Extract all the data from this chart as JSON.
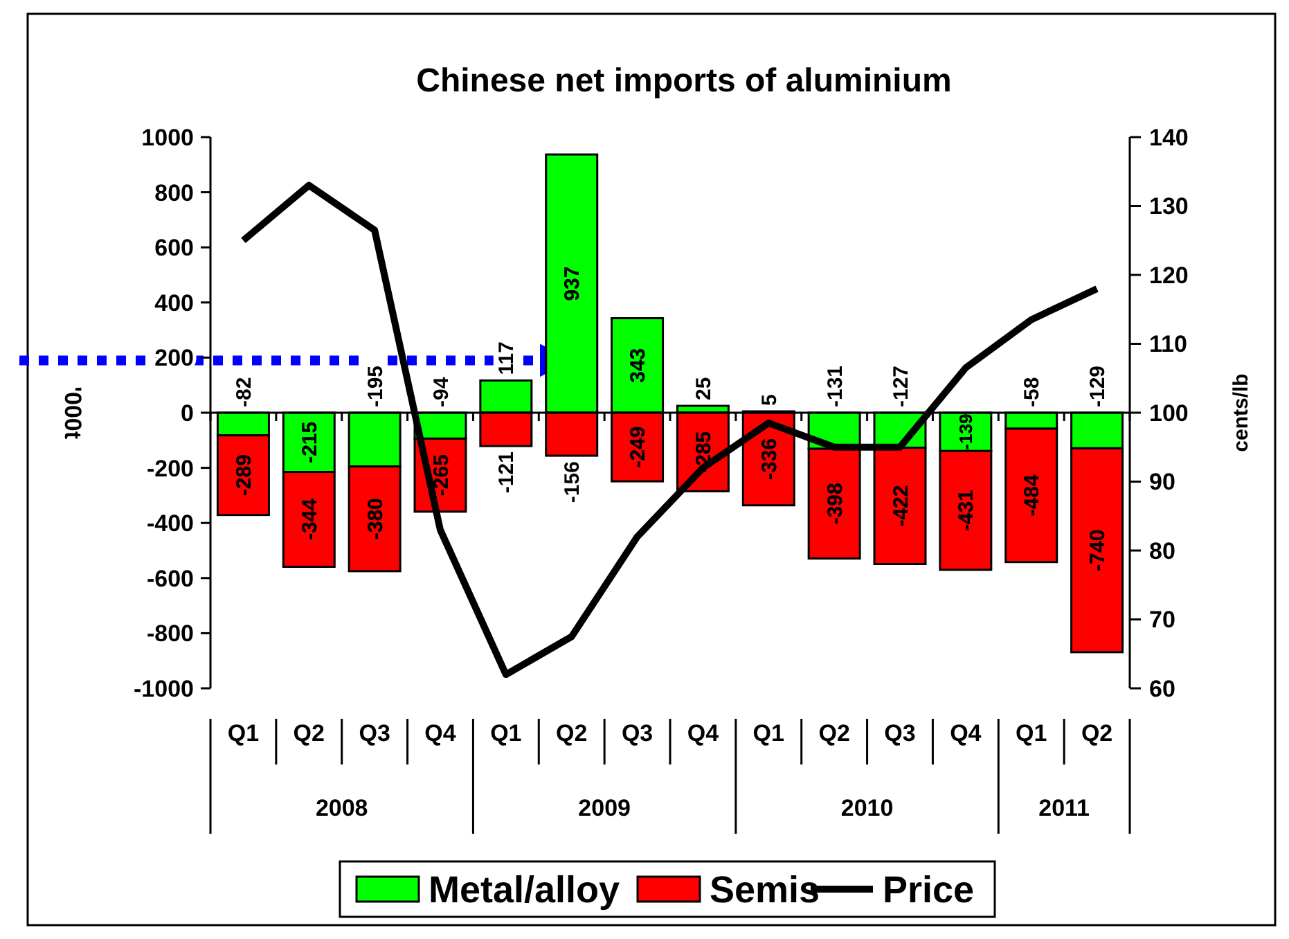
{
  "chart_data": {
    "type": "bar",
    "title": "Chinese net imports of aluminium",
    "ylabel": "'000t",
    "y2label": "cents/lb",
    "categories": [
      "Q1",
      "Q2",
      "Q3",
      "Q4",
      "Q1",
      "Q2",
      "Q3",
      "Q4",
      "Q1",
      "Q2",
      "Q3",
      "Q4",
      "Q1",
      "Q2"
    ],
    "annotations": [
      "2008",
      "2009",
      "2010",
      "2011"
    ],
    "stacked": true,
    "legend": "bottom",
    "series": [
      {
        "name": "Metal/alloy",
        "color": "#00ff00",
        "values": [
          -82,
          -215,
          -195,
          -94,
          117,
          937,
          343,
          25,
          5,
          -131,
          -127,
          -139,
          -58,
          -129
        ],
        "value_labels": [
          "-82",
          "-215",
          "-195",
          "-94",
          "117",
          "937",
          "343",
          "25",
          "5",
          "-131",
          "-127",
          "-139",
          "-58",
          "-129"
        ]
      },
      {
        "name": "Semis",
        "color": "#ff0000",
        "values": [
          -289,
          -344,
          -380,
          -265,
          -121,
          -156,
          -249,
          -285,
          -336,
          -398,
          -422,
          -431,
          -484,
          -740
        ],
        "value_labels": [
          "-289",
          "-344",
          "-380",
          "-265",
          "-121",
          "-156",
          "-249",
          "-285",
          "-336",
          "-398",
          "-422",
          "-431",
          "-484",
          "-740"
        ]
      },
      {
        "name": "Price",
        "color": "#000000",
        "type": "line",
        "axis": "y2",
        "values": [
          125,
          133,
          126.5,
          83,
          62,
          67.5,
          82,
          92,
          98.5,
          95,
          95,
          106.5,
          113.5,
          118
        ]
      }
    ],
    "ylim": [
      -1000,
      1000
    ],
    "yticks": [
      -1000,
      -800,
      -600,
      -400,
      -200,
      0,
      200,
      400,
      600,
      800,
      1000
    ],
    "ref_lines": [
      {
        "axis": "y",
        "value": 190,
        "color": "#0000ff",
        "line_style": "dotted"
      }
    ],
    "y2lim": [
      60,
      140
    ],
    "y2ticks": [
      60,
      70,
      80,
      90,
      100,
      110,
      120,
      130,
      140
    ]
  }
}
